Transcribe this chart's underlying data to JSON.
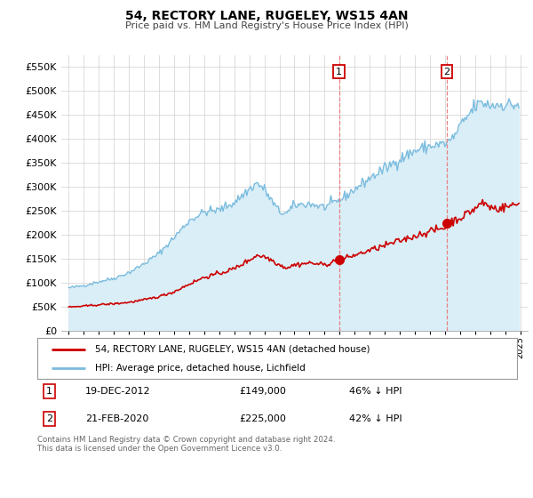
{
  "title": "54, RECTORY LANE, RUGELEY, WS15 4AN",
  "subtitle": "Price paid vs. HM Land Registry's House Price Index (HPI)",
  "ylabel_ticks": [
    "£0",
    "£50K",
    "£100K",
    "£150K",
    "£200K",
    "£250K",
    "£300K",
    "£350K",
    "£400K",
    "£450K",
    "£500K",
    "£550K"
  ],
  "ytick_values": [
    0,
    50000,
    100000,
    150000,
    200000,
    250000,
    300000,
    350000,
    400000,
    450000,
    500000,
    550000
  ],
  "ylim": [
    0,
    575000
  ],
  "xlim_start": 1994.5,
  "xlim_end": 2025.5,
  "hpi_color": "#7bbcde",
  "hpi_fill_color": "#daeef7",
  "price_color": "#cc0000",
  "vline_color": "#e88080",
  "marker1_date": 2012.96,
  "marker1_price": 149000,
  "marker2_date": 2020.13,
  "marker2_price": 225000,
  "legend_line1": "54, RECTORY LANE, RUGELEY, WS15 4AN (detached house)",
  "legend_line2": "HPI: Average price, detached house, Lichfield",
  "note1_num": "1",
  "note1_date": "19-DEC-2012",
  "note1_price": "£149,000",
  "note1_pct": "46% ↓ HPI",
  "note2_num": "2",
  "note2_date": "21-FEB-2020",
  "note2_price": "£225,000",
  "note2_pct": "42% ↓ HPI",
  "footnote": "Contains HM Land Registry data © Crown copyright and database right 2024.\nThis data is licensed under the Open Government Licence v3.0.",
  "background_color": "#ffffff",
  "grid_color": "#d0d0d0"
}
